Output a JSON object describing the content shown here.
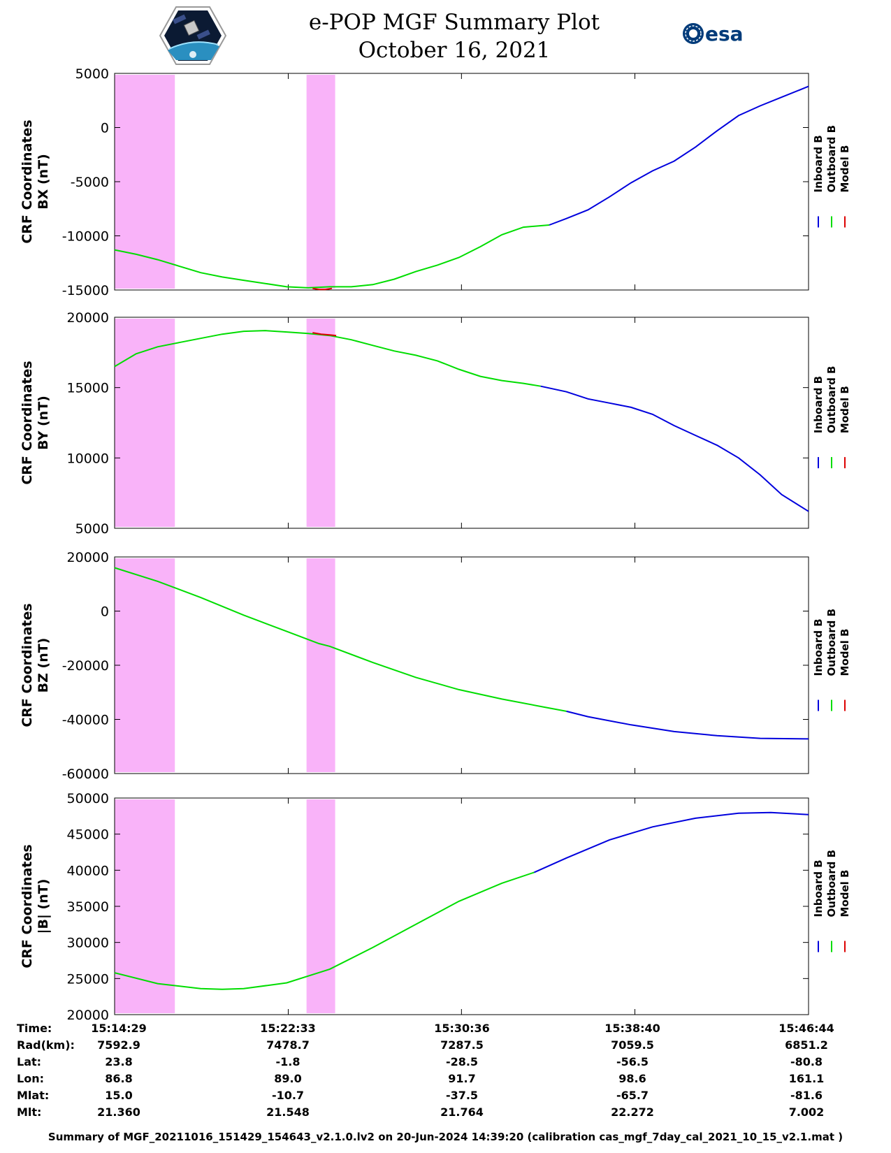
{
  "header": {
    "title_line1": "e-POP MGF Summary Plot",
    "title_line2": "October 16, 2021",
    "left_logo_icon": "satellite-mission-patch-icon",
    "right_logo_icon": "esa-logo-icon",
    "right_logo_text": "esa"
  },
  "colors": {
    "inboard": "#0000dd",
    "outboard": "#00dd00",
    "model": "#dd0000",
    "shade": "#f9b3f9"
  },
  "chart_data": [
    {
      "type": "line",
      "ylabel_line1": "CRF Coordinates",
      "ylabel_line2": "BX (nT)",
      "ylim": [
        -15000,
        5000
      ],
      "yticks": [
        5000,
        0,
        -5000,
        -10000,
        -15000
      ],
      "xlim": [
        0,
        32.25
      ],
      "shaded_intervals": [
        [
          0,
          2.8
        ],
        [
          8.92,
          10.25
        ]
      ],
      "legend": [
        "Inboard B",
        "Outboard B",
        "Model B"
      ],
      "legend_position": "right",
      "series": [
        {
          "name": "Outboard B",
          "color": "outboard",
          "x": [
            0,
            1,
            2,
            3,
            4,
            5,
            6,
            7,
            8,
            9,
            10,
            11,
            12,
            13,
            14,
            15,
            16,
            17,
            18,
            19,
            20.2
          ],
          "y": [
            -11300,
            -11700,
            -12200,
            -12800,
            -13400,
            -13800,
            -14100,
            -14400,
            -14700,
            -14800,
            -14700,
            -14700,
            -14500,
            -14000,
            -13300,
            -12700,
            -12000,
            -11000,
            -9900,
            -9200,
            -9000
          ]
        },
        {
          "name": "Inboard B",
          "color": "inboard",
          "x": [
            20.2,
            21,
            22,
            23,
            24,
            25,
            26,
            27,
            28,
            29,
            30,
            31,
            32.25
          ],
          "y": [
            -9000,
            -8400,
            -7600,
            -6400,
            -5100,
            -4000,
            -3100,
            -1800,
            -300,
            1100,
            2000,
            2800,
            3800
          ]
        },
        {
          "name": "Model B",
          "color": "model",
          "x": [
            9.2,
            9.5,
            9.8,
            10.1
          ],
          "y": [
            -14850,
            -14950,
            -14950,
            -14850
          ]
        }
      ]
    },
    {
      "type": "line",
      "ylabel_line1": "CRF Coordinates",
      "ylabel_line2": "BY (nT)",
      "ylim": [
        5000,
        20000
      ],
      "yticks": [
        20000,
        15000,
        10000,
        5000
      ],
      "xlim": [
        0,
        32.25
      ],
      "shaded_intervals": [
        [
          0,
          2.8
        ],
        [
          8.92,
          10.25
        ]
      ],
      "legend": [
        "Inboard B",
        "Outboard B",
        "Model B"
      ],
      "legend_position": "right",
      "series": [
        {
          "name": "Outboard B",
          "color": "outboard",
          "x": [
            0,
            1,
            2,
            3,
            4,
            5,
            6,
            7,
            8,
            9,
            10,
            11,
            12,
            13,
            14,
            15,
            16,
            17,
            18,
            19,
            19.8
          ],
          "y": [
            16500,
            17400,
            17900,
            18200,
            18500,
            18800,
            19000,
            19050,
            18950,
            18850,
            18700,
            18400,
            18000,
            17600,
            17300,
            16900,
            16300,
            15800,
            15500,
            15300,
            15100
          ]
        },
        {
          "name": "Inboard B",
          "color": "inboard",
          "x": [
            19.8,
            21,
            22,
            23,
            24,
            25,
            26,
            27,
            28,
            29,
            30,
            31,
            32.25
          ],
          "y": [
            15100,
            14700,
            14200,
            13900,
            13600,
            13100,
            12300,
            11600,
            10900,
            10000,
            8800,
            7400,
            6200
          ]
        },
        {
          "name": "Model B",
          "color": "model",
          "x": [
            9.2,
            9.6,
            10.0,
            10.3
          ],
          "y": [
            18900,
            18800,
            18750,
            18700
          ]
        }
      ]
    },
    {
      "type": "line",
      "ylabel_line1": "CRF Coordinates",
      "ylabel_line2": "BZ (nT)",
      "ylim": [
        -60000,
        20000
      ],
      "yticks": [
        20000,
        0,
        -20000,
        -40000,
        -60000
      ],
      "xlim": [
        0,
        32.25
      ],
      "shaded_intervals": [
        [
          0,
          2.8
        ],
        [
          8.92,
          10.25
        ]
      ],
      "legend": [
        "Inboard B",
        "Outboard B",
        "Model B"
      ],
      "legend_position": "right",
      "series": [
        {
          "name": "Outboard B",
          "color": "outboard",
          "x": [
            0,
            2,
            4,
            6,
            8,
            9.5,
            10,
            12,
            14,
            16,
            18,
            20,
            21
          ],
          "y": [
            16000,
            11000,
            5000,
            -1500,
            -7500,
            -12000,
            -13000,
            -19000,
            -24500,
            -29000,
            -32500,
            -35500,
            -37000
          ]
        },
        {
          "name": "Inboard B",
          "color": "inboard",
          "x": [
            21,
            22,
            24,
            26,
            28,
            30,
            32.25
          ],
          "y": [
            -37000,
            -39000,
            -42000,
            -44500,
            -46000,
            -47000,
            -47200
          ]
        }
      ]
    },
    {
      "type": "line",
      "ylabel_line1": "CRF Coordinates",
      "ylabel_line2": "|B| (nT)",
      "ylim": [
        20000,
        50000
      ],
      "yticks": [
        50000,
        45000,
        40000,
        35000,
        30000,
        25000,
        20000
      ],
      "xlim": [
        0,
        32.25
      ],
      "shaded_intervals": [
        [
          0,
          2.8
        ],
        [
          8.92,
          10.25
        ]
      ],
      "legend": [
        "Inboard B",
        "Outboard B",
        "Model B"
      ],
      "legend_position": "right",
      "series": [
        {
          "name": "Outboard B",
          "color": "outboard",
          "x": [
            0,
            2,
            4,
            5,
            6,
            8,
            10,
            12,
            14,
            16,
            18,
            19.5
          ],
          "y": [
            25800,
            24300,
            23600,
            23500,
            23600,
            24400,
            26300,
            29300,
            32500,
            35700,
            38200,
            39700
          ]
        },
        {
          "name": "Inboard B",
          "color": "inboard",
          "x": [
            19.5,
            21,
            23,
            25,
            27,
            29,
            30.5,
            32.25
          ],
          "y": [
            39700,
            41700,
            44200,
            46000,
            47200,
            47900,
            48000,
            47700
          ]
        }
      ]
    }
  ],
  "x_ticks": [
    0,
    8.07,
    16.12,
    24.18,
    32.25
  ],
  "info_table": {
    "rows": [
      {
        "label": "Time:",
        "values": [
          "15:14:29",
          "15:22:33",
          "15:30:36",
          "15:38:40",
          "15:46:44"
        ]
      },
      {
        "label": "Rad(km):",
        "values": [
          "7592.9",
          "7478.7",
          "7287.5",
          "7059.5",
          "6851.2"
        ]
      },
      {
        "label": "Lat:",
        "values": [
          "23.8",
          "-1.8",
          "-28.5",
          "-56.5",
          "-80.8"
        ]
      },
      {
        "label": "Lon:",
        "values": [
          "86.8",
          "89.0",
          "91.7",
          "98.6",
          "161.1"
        ]
      },
      {
        "label": "Mlat:",
        "values": [
          "15.0",
          "-10.7",
          "-37.5",
          "-65.7",
          "-81.6"
        ]
      },
      {
        "label": "Mlt:",
        "values": [
          "21.360",
          "21.548",
          "21.764",
          "22.272",
          "7.002"
        ]
      }
    ]
  },
  "footer": {
    "text": "Summary of MGF_20211016_151429_154643_v2.1.0.lv2 on 20-Jun-2024 14:39:20 (calibration cas_mgf_7day_cal_2021_10_15_v2.1.mat )"
  }
}
